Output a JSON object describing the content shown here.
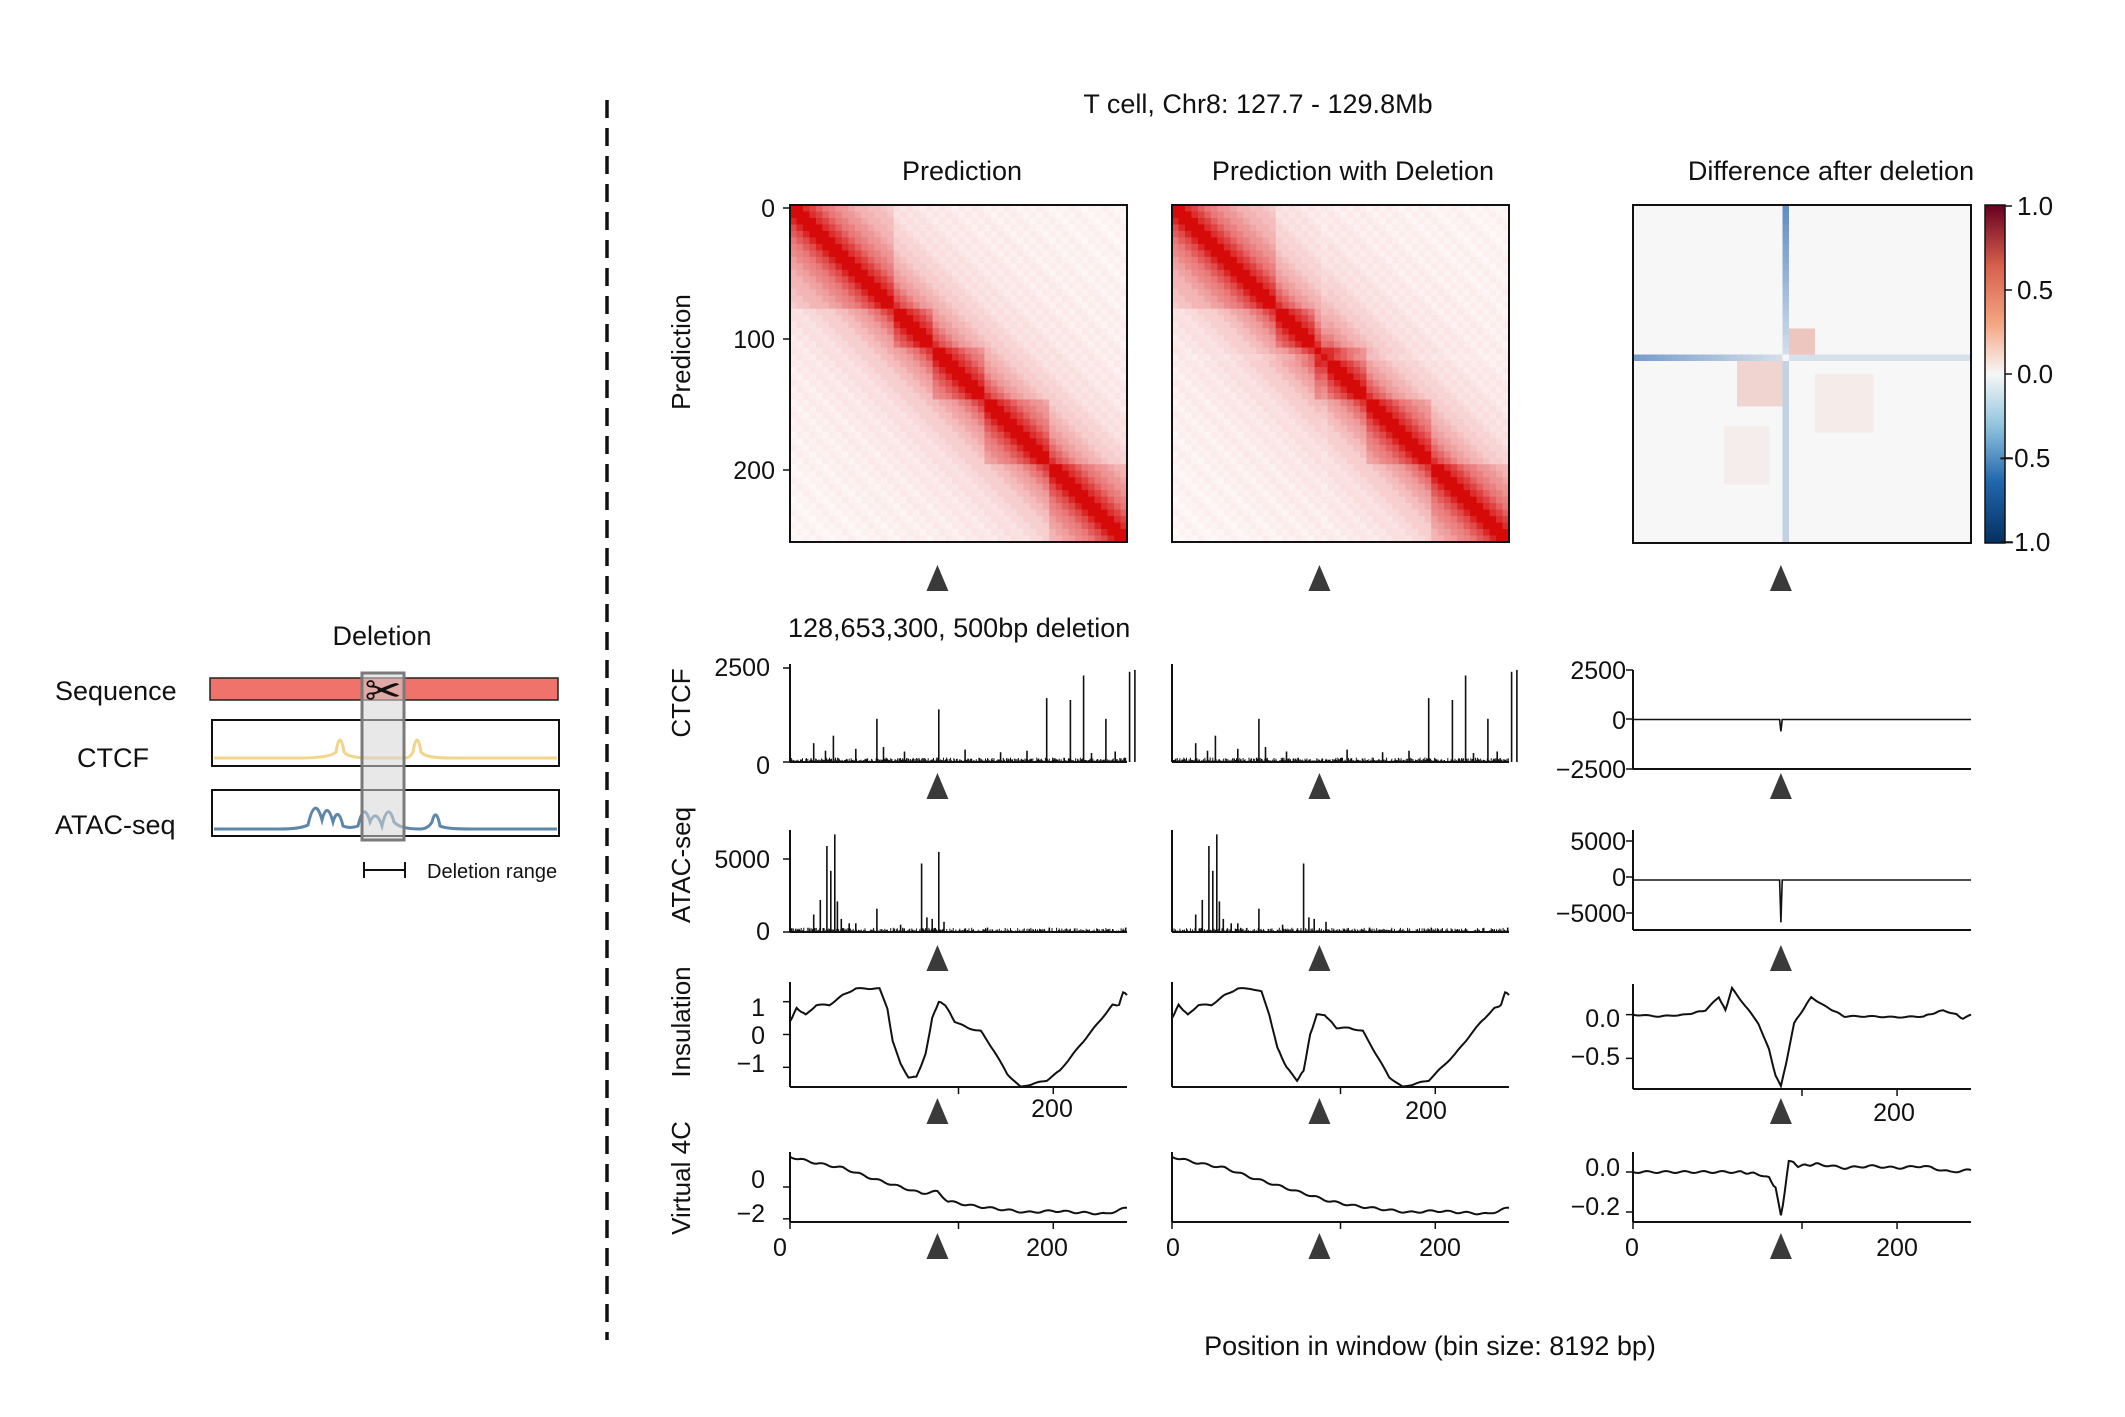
{
  "figure": {
    "title": "T cell, Chr8: 127.7 - 129.8Mb",
    "deletion_label": "128,653,300, 500bp deletion",
    "x_label": "Position in window (bin size: 8192 bp)"
  },
  "schematic": {
    "title": "Deletion",
    "rows": [
      "Sequence",
      "CTCF",
      "ATAC-seq"
    ],
    "legend": "Deletion range",
    "colors": {
      "sequence": "#f0736b",
      "ctcf": "#f2d58a",
      "atac": "#5e86a8",
      "deletion_box": "#d6d6d6"
    }
  },
  "columns": [
    {
      "title": "Prediction"
    },
    {
      "title": "Prediction with Deletion"
    },
    {
      "title": "Difference after deletion"
    }
  ],
  "row_labels": [
    "Prediction",
    "CTCF",
    "ATAC-seq",
    "Insulation",
    "Virtual 4C"
  ],
  "colorbar": {
    "ticks": [
      "1.0",
      "0.5",
      "0.0",
      "−0.5",
      "−1.0"
    ],
    "range": [
      -1,
      1
    ],
    "low_color": "#053061",
    "mid_color": "#f7f7f7",
    "high_color": "#67001f"
  },
  "chart_data": [
    {
      "type": "heatmap",
      "panel": "Prediction",
      "n_bins": 256,
      "ylabel": "Prediction",
      "yticks": [
        "0",
        "100",
        "200"
      ],
      "colormap": "Reds",
      "marker_bin": 112
    },
    {
      "type": "heatmap",
      "panel": "Prediction with Deletion",
      "n_bins": 256,
      "colormap": "Reds",
      "marker_bin": 112
    },
    {
      "type": "heatmap",
      "panel": "Difference after deletion",
      "n_bins": 256,
      "colormap": "RdBu_r",
      "vlim": [
        -1,
        1
      ],
      "marker_bin": 112
    },
    {
      "type": "bar",
      "panel": "CTCF",
      "ylabel": "CTCF",
      "columns": [
        "Prediction",
        "Prediction with Deletion"
      ],
      "yticks": [
        "2500",
        "0"
      ],
      "ylim": [
        0,
        2500
      ],
      "peaks": [
        {
          "x": 18,
          "y": 500
        },
        {
          "x": 27,
          "y": 300
        },
        {
          "x": 33,
          "y": 700
        },
        {
          "x": 50,
          "y": 350
        },
        {
          "x": 66,
          "y": 1150
        },
        {
          "x": 71,
          "y": 400
        },
        {
          "x": 87,
          "y": 280
        },
        {
          "x": 113,
          "y": 1400
        },
        {
          "x": 133,
          "y": 330
        },
        {
          "x": 160,
          "y": 260
        },
        {
          "x": 180,
          "y": 300
        },
        {
          "x": 195,
          "y": 1700
        },
        {
          "x": 213,
          "y": 1650
        },
        {
          "x": 223,
          "y": 2300
        },
        {
          "x": 229,
          "y": 240
        },
        {
          "x": 240,
          "y": 1150
        },
        {
          "x": 247,
          "y": 280
        },
        {
          "x": 258,
          "y": 2400
        },
        {
          "x": 262,
          "y": 2450
        }
      ]
    },
    {
      "type": "line",
      "panel": "CTCF difference",
      "yticks": [
        "2500",
        "0",
        "−2500"
      ],
      "ylim": [
        -2500,
        2500
      ],
      "points": [
        {
          "x": 0,
          "y": 0
        },
        {
          "x": 111,
          "y": 0
        },
        {
          "x": 112,
          "y": -600
        },
        {
          "x": 113,
          "y": 0
        },
        {
          "x": 256,
          "y": 0
        }
      ]
    },
    {
      "type": "bar",
      "panel": "ATAC-seq",
      "ylabel": "ATAC-seq",
      "columns": [
        "Prediction",
        "Prediction with Deletion"
      ],
      "yticks": [
        "5000",
        "0"
      ],
      "ylim": [
        0,
        7000
      ],
      "peaks": [
        {
          "x": 18,
          "y": 1200
        },
        {
          "x": 23,
          "y": 2200
        },
        {
          "x": 28,
          "y": 5900
        },
        {
          "x": 31,
          "y": 4200
        },
        {
          "x": 34,
          "y": 6700
        },
        {
          "x": 36,
          "y": 2100
        },
        {
          "x": 39,
          "y": 900
        },
        {
          "x": 45,
          "y": 600
        },
        {
          "x": 50,
          "y": 600
        },
        {
          "x": 66,
          "y": 1600
        },
        {
          "x": 84,
          "y": 500
        },
        {
          "x": 100,
          "y": 4700
        },
        {
          "x": 104,
          "y": 1000
        },
        {
          "x": 108,
          "y": 900
        },
        {
          "x": 113,
          "y": 5500
        },
        {
          "x": 117,
          "y": 700
        },
        {
          "x": 150,
          "y": 300
        },
        {
          "x": 197,
          "y": 300
        },
        {
          "x": 255,
          "y": 300
        }
      ]
    },
    {
      "type": "line",
      "panel": "ATAC-seq difference",
      "yticks": [
        "5000",
        "0",
        "−5000"
      ],
      "ylim": [
        -6500,
        6500
      ],
      "points": [
        {
          "x": 0,
          "y": 0
        },
        {
          "x": 111,
          "y": 0
        },
        {
          "x": 112,
          "y": -5500
        },
        {
          "x": 113,
          "y": 0
        },
        {
          "x": 256,
          "y": 0
        }
      ]
    },
    {
      "type": "line",
      "panel": "Insulation",
      "ylabel": "Insulation",
      "yticks": [
        "1",
        "0",
        "−1"
      ],
      "ylim": [
        -1.6,
        1.6
      ],
      "xticks": [
        "200"
      ],
      "points": [
        {
          "x": 0,
          "y": 0.4
        },
        {
          "x": 5,
          "y": 0.8
        },
        {
          "x": 12,
          "y": 0.6
        },
        {
          "x": 20,
          "y": 0.9
        },
        {
          "x": 30,
          "y": 0.9
        },
        {
          "x": 40,
          "y": 1.2
        },
        {
          "x": 50,
          "y": 1.4
        },
        {
          "x": 60,
          "y": 1.4
        },
        {
          "x": 68,
          "y": 1.4
        },
        {
          "x": 74,
          "y": 0.8
        },
        {
          "x": 78,
          "y": -0.2
        },
        {
          "x": 84,
          "y": -0.9
        },
        {
          "x": 90,
          "y": -1.3
        },
        {
          "x": 96,
          "y": -1.3
        },
        {
          "x": 103,
          "y": -0.6
        },
        {
          "x": 108,
          "y": 0.5
        },
        {
          "x": 113,
          "y": 1.0
        },
        {
          "x": 118,
          "y": 0.9
        },
        {
          "x": 125,
          "y": 0.4
        },
        {
          "x": 135,
          "y": 0.2
        },
        {
          "x": 145,
          "y": 0.1
        },
        {
          "x": 155,
          "y": -0.5
        },
        {
          "x": 165,
          "y": -1.2
        },
        {
          "x": 175,
          "y": -1.6
        },
        {
          "x": 185,
          "y": -1.5
        },
        {
          "x": 195,
          "y": -1.4
        },
        {
          "x": 205,
          "y": -1.1
        },
        {
          "x": 215,
          "y": -0.6
        },
        {
          "x": 225,
          "y": -0.1
        },
        {
          "x": 235,
          "y": 0.4
        },
        {
          "x": 245,
          "y": 0.9
        },
        {
          "x": 250,
          "y": 0.9
        },
        {
          "x": 253,
          "y": 1.3
        },
        {
          "x": 256,
          "y": 1.2
        }
      ]
    },
    {
      "type": "line",
      "panel": "Insulation deletion",
      "yticks": [],
      "ylim": [
        -1.6,
        1.6
      ],
      "xticks": [
        "200"
      ],
      "points": [
        {
          "x": 0,
          "y": 0.5
        },
        {
          "x": 5,
          "y": 0.9
        },
        {
          "x": 12,
          "y": 0.6
        },
        {
          "x": 20,
          "y": 0.9
        },
        {
          "x": 30,
          "y": 0.9
        },
        {
          "x": 40,
          "y": 1.2
        },
        {
          "x": 50,
          "y": 1.4
        },
        {
          "x": 60,
          "y": 1.4
        },
        {
          "x": 68,
          "y": 1.3
        },
        {
          "x": 74,
          "y": 0.6
        },
        {
          "x": 80,
          "y": -0.4
        },
        {
          "x": 87,
          "y": -1.0
        },
        {
          "x": 95,
          "y": -1.4
        },
        {
          "x": 100,
          "y": -1.1
        },
        {
          "x": 105,
          "y": 0.0
        },
        {
          "x": 110,
          "y": 0.6
        },
        {
          "x": 116,
          "y": 0.6
        },
        {
          "x": 125,
          "y": 0.2
        },
        {
          "x": 135,
          "y": 0.2
        },
        {
          "x": 145,
          "y": 0.1
        },
        {
          "x": 155,
          "y": -0.6
        },
        {
          "x": 165,
          "y": -1.3
        },
        {
          "x": 175,
          "y": -1.6
        },
        {
          "x": 185,
          "y": -1.5
        },
        {
          "x": 195,
          "y": -1.4
        },
        {
          "x": 205,
          "y": -1.0
        },
        {
          "x": 215,
          "y": -0.6
        },
        {
          "x": 225,
          "y": -0.1
        },
        {
          "x": 235,
          "y": 0.4
        },
        {
          "x": 245,
          "y": 0.8
        },
        {
          "x": 250,
          "y": 0.9
        },
        {
          "x": 253,
          "y": 1.3
        },
        {
          "x": 256,
          "y": 1.2
        }
      ]
    },
    {
      "type": "line",
      "panel": "Insulation difference",
      "yticks": [
        "0.0",
        "−0.5"
      ],
      "ylim": [
        -0.85,
        0.35
      ],
      "xticks": [
        "200"
      ],
      "points": [
        {
          "x": 0,
          "y": 0.0
        },
        {
          "x": 20,
          "y": -0.02
        },
        {
          "x": 40,
          "y": 0.0
        },
        {
          "x": 55,
          "y": 0.05
        },
        {
          "x": 65,
          "y": 0.2
        },
        {
          "x": 70,
          "y": 0.05
        },
        {
          "x": 75,
          "y": 0.3
        },
        {
          "x": 85,
          "y": 0.1
        },
        {
          "x": 95,
          "y": -0.1
        },
        {
          "x": 103,
          "y": -0.4
        },
        {
          "x": 108,
          "y": -0.7
        },
        {
          "x": 112,
          "y": -0.82
        },
        {
          "x": 116,
          "y": -0.55
        },
        {
          "x": 122,
          "y": -0.1
        },
        {
          "x": 135,
          "y": 0.2
        },
        {
          "x": 145,
          "y": 0.1
        },
        {
          "x": 160,
          "y": -0.02
        },
        {
          "x": 180,
          "y": -0.02
        },
        {
          "x": 200,
          "y": -0.03
        },
        {
          "x": 220,
          "y": -0.02
        },
        {
          "x": 235,
          "y": 0.05
        },
        {
          "x": 245,
          "y": 0.0
        },
        {
          "x": 250,
          "y": -0.05
        },
        {
          "x": 256,
          "y": 0.0
        }
      ]
    },
    {
      "type": "line",
      "panel": "Virtual 4C",
      "ylabel": "Virtual 4C",
      "yticks": [
        "0",
        "−2"
      ],
      "ylim": [
        -2.2,
        2.2
      ],
      "xticks": [
        "0",
        "200"
      ],
      "points": [
        {
          "x": 0,
          "y": 1.9
        },
        {
          "x": 20,
          "y": 1.5
        },
        {
          "x": 40,
          "y": 1.2
        },
        {
          "x": 60,
          "y": 0.6
        },
        {
          "x": 80,
          "y": 0.1
        },
        {
          "x": 100,
          "y": -0.4
        },
        {
          "x": 110,
          "y": -0.3
        },
        {
          "x": 112,
          "y": -0.3
        },
        {
          "x": 120,
          "y": -0.9
        },
        {
          "x": 140,
          "y": -1.2
        },
        {
          "x": 160,
          "y": -1.4
        },
        {
          "x": 180,
          "y": -1.6
        },
        {
          "x": 200,
          "y": -1.5
        },
        {
          "x": 220,
          "y": -1.6
        },
        {
          "x": 240,
          "y": -1.7
        },
        {
          "x": 256,
          "y": -1.3
        }
      ]
    },
    {
      "type": "line",
      "panel": "Virtual 4C deletion",
      "yticks": [],
      "ylim": [
        -2.2,
        2.2
      ],
      "xticks": [
        "0",
        "200"
      ],
      "points": [
        {
          "x": 0,
          "y": 1.9
        },
        {
          "x": 20,
          "y": 1.5
        },
        {
          "x": 40,
          "y": 1.2
        },
        {
          "x": 60,
          "y": 0.6
        },
        {
          "x": 80,
          "y": 0.1
        },
        {
          "x": 100,
          "y": -0.4
        },
        {
          "x": 112,
          "y": -0.7
        },
        {
          "x": 120,
          "y": -0.9
        },
        {
          "x": 140,
          "y": -1.2
        },
        {
          "x": 160,
          "y": -1.4
        },
        {
          "x": 180,
          "y": -1.6
        },
        {
          "x": 200,
          "y": -1.5
        },
        {
          "x": 220,
          "y": -1.6
        },
        {
          "x": 240,
          "y": -1.7
        },
        {
          "x": 256,
          "y": -1.3
        }
      ]
    },
    {
      "type": "line",
      "panel": "Virtual 4C difference",
      "yticks": [
        "0.0",
        "−0.2"
      ],
      "ylim": [
        -0.25,
        0.1
      ],
      "xticks": [
        "0",
        "200"
      ],
      "points": [
        {
          "x": 0,
          "y": 0.0
        },
        {
          "x": 50,
          "y": 0.0
        },
        {
          "x": 80,
          "y": 0.0
        },
        {
          "x": 95,
          "y": -0.01
        },
        {
          "x": 103,
          "y": -0.03
        },
        {
          "x": 108,
          "y": -0.08
        },
        {
          "x": 112,
          "y": -0.22
        },
        {
          "x": 115,
          "y": -0.1
        },
        {
          "x": 118,
          "y": 0.06
        },
        {
          "x": 125,
          "y": 0.03
        },
        {
          "x": 140,
          "y": 0.04
        },
        {
          "x": 160,
          "y": 0.02
        },
        {
          "x": 180,
          "y": 0.03
        },
        {
          "x": 200,
          "y": 0.02
        },
        {
          "x": 220,
          "y": 0.03
        },
        {
          "x": 240,
          "y": 0.0
        },
        {
          "x": 256,
          "y": 0.01
        }
      ]
    }
  ]
}
